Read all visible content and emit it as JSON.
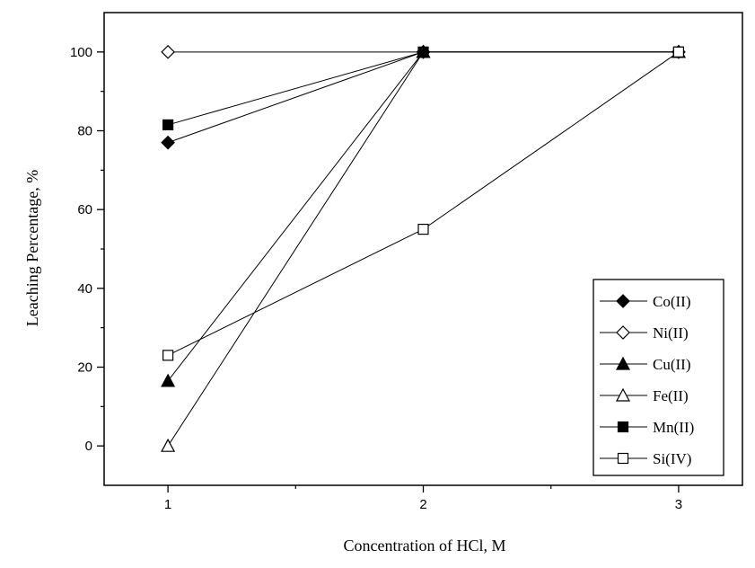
{
  "chart_data": {
    "type": "line",
    "title": "",
    "xlabel": "Concentration of  HCl, M",
    "ylabel": "Leaching Percentage, %",
    "xlim": [
      0.75,
      3.25
    ],
    "ylim": [
      -10,
      110
    ],
    "x_ticks": [
      1,
      2,
      3
    ],
    "y_ticks": [
      0,
      20,
      40,
      60,
      80,
      100
    ],
    "grid": false,
    "legend_position": "bottom-right",
    "x": [
      1,
      2,
      3
    ],
    "series": [
      {
        "name": "Co(II)",
        "values": [
          77,
          100,
          100
        ],
        "marker": "diamond",
        "filled": true
      },
      {
        "name": "Ni(II)",
        "values": [
          100,
          100,
          100
        ],
        "marker": "diamond",
        "filled": false
      },
      {
        "name": "Cu(II)",
        "values": [
          16.5,
          100,
          100
        ],
        "marker": "triangle",
        "filled": true
      },
      {
        "name": "Fe(II)",
        "values": [
          0,
          100,
          100
        ],
        "marker": "triangle",
        "filled": false
      },
      {
        "name": "Mn(II)",
        "values": [
          81.5,
          100,
          100
        ],
        "marker": "square",
        "filled": true
      },
      {
        "name": "Si(IV)",
        "values": [
          23,
          55,
          100
        ],
        "marker": "square",
        "filled": false
      }
    ]
  }
}
